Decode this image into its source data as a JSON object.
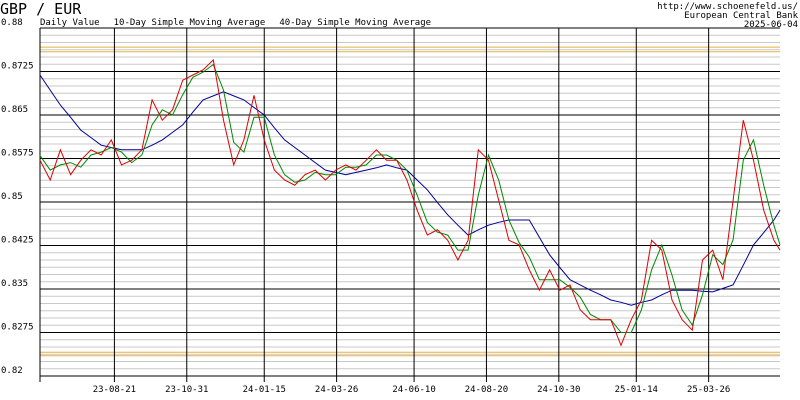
{
  "chart_data": {
    "type": "line",
    "title": "GBP / EUR",
    "source_lines": [
      "http://www.schoenefeld.us/",
      "European Central Bank",
      "2025-06-04"
    ],
    "x": [
      "23-06-09",
      "23-06-19",
      "23-06-29",
      "23-07-09",
      "23-07-19",
      "23-07-29",
      "23-08-08",
      "23-08-18",
      "23-08-28",
      "23-09-07",
      "23-09-17",
      "23-09-27",
      "23-10-07",
      "23-10-17",
      "23-10-27",
      "23-11-06",
      "23-11-16",
      "23-11-26",
      "23-12-06",
      "23-12-16",
      "23-12-26",
      "24-01-05",
      "24-01-15",
      "24-01-25",
      "24-02-04",
      "24-02-14",
      "24-02-24",
      "24-03-05",
      "24-03-15",
      "24-03-25",
      "24-04-04",
      "24-04-14",
      "24-04-24",
      "24-05-04",
      "24-05-14",
      "24-05-24",
      "24-06-03",
      "24-06-13",
      "24-06-23",
      "24-07-03",
      "24-07-13",
      "24-07-23",
      "24-08-02",
      "24-08-12",
      "24-08-22",
      "24-09-01",
      "24-09-11",
      "24-09-21",
      "24-10-01",
      "24-10-11",
      "24-10-21",
      "24-10-31",
      "24-11-10",
      "24-11-20",
      "24-11-30",
      "24-12-10",
      "24-12-20",
      "24-12-30",
      "25-01-09",
      "25-01-19",
      "25-01-29",
      "25-02-08",
      "25-02-18",
      "25-02-28",
      "25-03-10",
      "25-03-20",
      "25-03-30",
      "25-04-09",
      "25-04-19",
      "25-04-29",
      "25-05-09",
      "25-05-19",
      "25-05-29",
      "25-06-04"
    ],
    "series": [
      {
        "name": "Daily Value",
        "color": "#dd0000",
        "values": [
          0.8572,
          0.8538,
          0.859,
          0.8547,
          0.8572,
          0.859,
          0.8581,
          0.8607,
          0.8564,
          0.8572,
          0.859,
          0.8676,
          0.8641,
          0.8659,
          0.871,
          0.8719,
          0.8728,
          0.8745,
          0.8641,
          0.8564,
          0.8607,
          0.8684,
          0.8607,
          0.8555,
          0.8538,
          0.8529,
          0.8547,
          0.8555,
          0.8538,
          0.8555,
          0.8564,
          0.8555,
          0.8572,
          0.859,
          0.8572,
          0.8572,
          0.8538,
          0.8486,
          0.8443,
          0.8452,
          0.8434,
          0.84,
          0.8434,
          0.859,
          0.8572,
          0.8503,
          0.8434,
          0.8426,
          0.8383,
          0.8348,
          0.8383,
          0.8348,
          0.8357,
          0.8314,
          0.8297,
          0.8297,
          0.8297,
          0.8253,
          0.8297,
          0.8331,
          0.8434,
          0.8417,
          0.8331,
          0.8297,
          0.8279,
          0.84,
          0.8417,
          0.8366,
          0.8503,
          0.8641,
          0.8572,
          0.8486,
          0.8434,
          0.8417
        ]
      },
      {
        "name": "10-Day Simple Moving Average",
        "color": "#008800",
        "values": [
          0.858,
          0.8555,
          0.8564,
          0.8568,
          0.856,
          0.8581,
          0.8586,
          0.8594,
          0.8586,
          0.8568,
          0.8581,
          0.8633,
          0.8659,
          0.865,
          0.8685,
          0.8715,
          0.8724,
          0.8737,
          0.8693,
          0.8603,
          0.8586,
          0.8646,
          0.8646,
          0.8581,
          0.8547,
          0.8534,
          0.8538,
          0.8551,
          0.8547,
          0.8547,
          0.856,
          0.856,
          0.8564,
          0.8581,
          0.8581,
          0.8572,
          0.8555,
          0.8512,
          0.8465,
          0.8448,
          0.8443,
          0.8417,
          0.8417,
          0.8512,
          0.8581,
          0.8538,
          0.8469,
          0.843,
          0.8405,
          0.8366,
          0.8366,
          0.8366,
          0.8353,
          0.8336,
          0.8306,
          0.8297,
          0.8297,
          0.8275,
          0.8275,
          0.8314,
          0.8383,
          0.8426,
          0.8374,
          0.8314,
          0.8288,
          0.834,
          0.8409,
          0.8392,
          0.8435,
          0.8572,
          0.8607,
          0.8529,
          0.846,
          0.8426
        ]
      },
      {
        "name": "40-Day Simple Moving Average",
        "color": "#000099",
        "values": [
          0.8719,
          0.8693,
          0.8667,
          0.8646,
          0.8624,
          0.8611,
          0.8598,
          0.8594,
          0.859,
          0.859,
          0.859,
          0.8598,
          0.8607,
          0.862,
          0.8633,
          0.8655,
          0.8676,
          0.8683,
          0.869,
          0.8683,
          0.8676,
          0.8663,
          0.865,
          0.8628,
          0.8607,
          0.8594,
          0.8581,
          0.8568,
          0.8555,
          0.8551,
          0.8547,
          0.8551,
          0.8555,
          0.8559,
          0.8564,
          0.8559,
          0.8555,
          0.8538,
          0.8521,
          0.8499,
          0.8478,
          0.846,
          0.8443,
          0.8452,
          0.846,
          0.8465,
          0.8469,
          0.8469,
          0.8469,
          0.8439,
          0.8409,
          0.8387,
          0.8366,
          0.8357,
          0.8348,
          0.834,
          0.8331,
          0.8327,
          0.8322,
          0.8327,
          0.8331,
          0.834,
          0.8348,
          0.8348,
          0.8348,
          0.8346,
          0.8345,
          0.8351,
          0.8357,
          0.8391,
          0.8426,
          0.8447,
          0.8469,
          0.8486
        ]
      }
    ],
    "xlim": [
      "23-06-09",
      "25-06-04"
    ],
    "xticks": [
      "23-08-21",
      "23-10-31",
      "24-01-15",
      "24-03-26",
      "24-06-10",
      "24-08-20",
      "24-10-30",
      "25-01-14",
      "25-03-26"
    ],
    "ylim": [
      0.82,
      0.88
    ],
    "yticks": [
      0.82,
      0.8275,
      0.835,
      0.8425,
      0.85,
      0.8575,
      0.865,
      0.8725,
      0.88
    ],
    "hlines": [
      0.8767,
      0.8759,
      0.8241,
      0.8235
    ],
    "hline_color": "#e8b040",
    "grid": true
  }
}
